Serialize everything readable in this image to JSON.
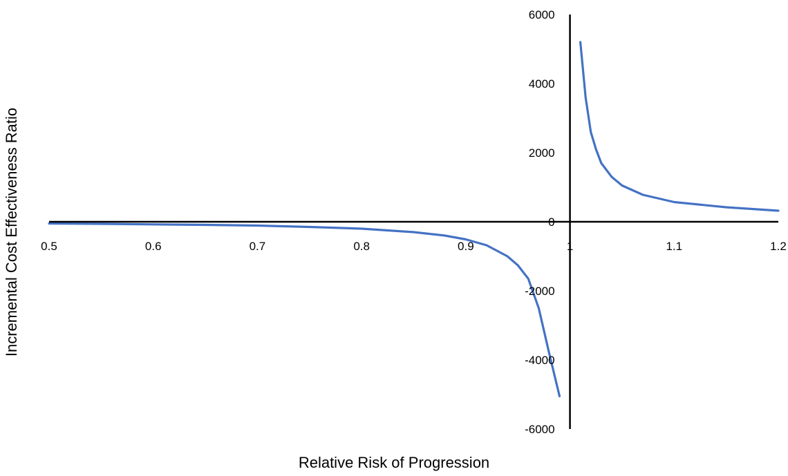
{
  "chart_data": {
    "type": "line",
    "title": "",
    "xlabel": "Relative Risk of Progression",
    "ylabel": "Incremental Cost Effectiveness Ratio",
    "xlim": [
      0.5,
      1.2
    ],
    "ylim": [
      -6000,
      6000
    ],
    "x_ticks": [
      "0.5",
      "0.6",
      "0.7",
      "0.8",
      "0.9",
      "1",
      "1.1",
      "1.2"
    ],
    "y_ticks": [
      "-6000",
      "-4000",
      "-2000",
      "0",
      "2000",
      "4000",
      "6000"
    ],
    "grid": false,
    "legend": "none",
    "line_color": "#4472C4",
    "series": [
      {
        "segments": [
          {
            "x": [
              0.5,
              0.55,
              0.6,
              0.65,
              0.7,
              0.75,
              0.8,
              0.85,
              0.88,
              0.9,
              0.92,
              0.94,
              0.95,
              0.96,
              0.97,
              0.98,
              0.99
            ],
            "y": [
              -50,
              -60,
              -75,
              -90,
              -110,
              -150,
              -200,
              -300,
              -400,
              -510,
              -680,
              -1000,
              -1260,
              -1650,
              -2500,
              -3800,
              -5050
            ]
          },
          {
            "x": [
              1.01,
              1.015,
              1.02,
              1.025,
              1.03,
              1.04,
              1.05,
              1.07,
              1.1,
              1.15,
              1.2
            ],
            "y": [
              5200,
              3600,
              2600,
              2100,
              1700,
              1300,
              1050,
              780,
              570,
              420,
              320
            ]
          }
        ]
      }
    ]
  }
}
